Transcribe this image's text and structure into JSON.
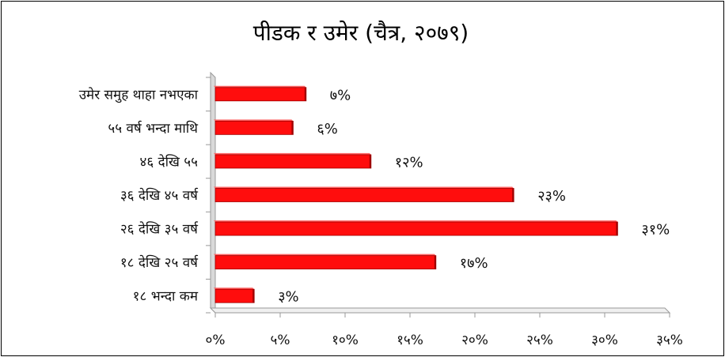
{
  "title": "पीडक र उमेर (चैत्र, २०७९)",
  "colors": {
    "bar": "#ff0d0d",
    "bar_edge": "#a00000",
    "axis": "#999999",
    "wall": "#d9d9d9"
  },
  "chart_data": {
    "type": "bar",
    "orientation": "horizontal",
    "title": "पीडक र उमेर (चैत्र, २०७९)",
    "categories": [
      "उमेर समुह थाहा नभएका",
      "५५ वर्ष भन्दा माथि",
      "४६ देखि ५५",
      "३६ देखि ४५ वर्ष",
      "२६ देखि ३५ वर्ष",
      "१८ देखि २५ वर्ष",
      "१८ भन्दा कम"
    ],
    "values": [
      7,
      6,
      12,
      23,
      31,
      17,
      3
    ],
    "value_labels": [
      "७%",
      "६%",
      "१२%",
      "२३%",
      "३१%",
      "१७%",
      "३%"
    ],
    "xlim": [
      0,
      35
    ],
    "x_ticks": [
      "०%",
      "५%",
      "१०%",
      "१५%",
      "२०%",
      "२५%",
      "३०%",
      "३५%"
    ],
    "xlabel": "",
    "ylabel": "",
    "grid": false,
    "legend": "none"
  }
}
